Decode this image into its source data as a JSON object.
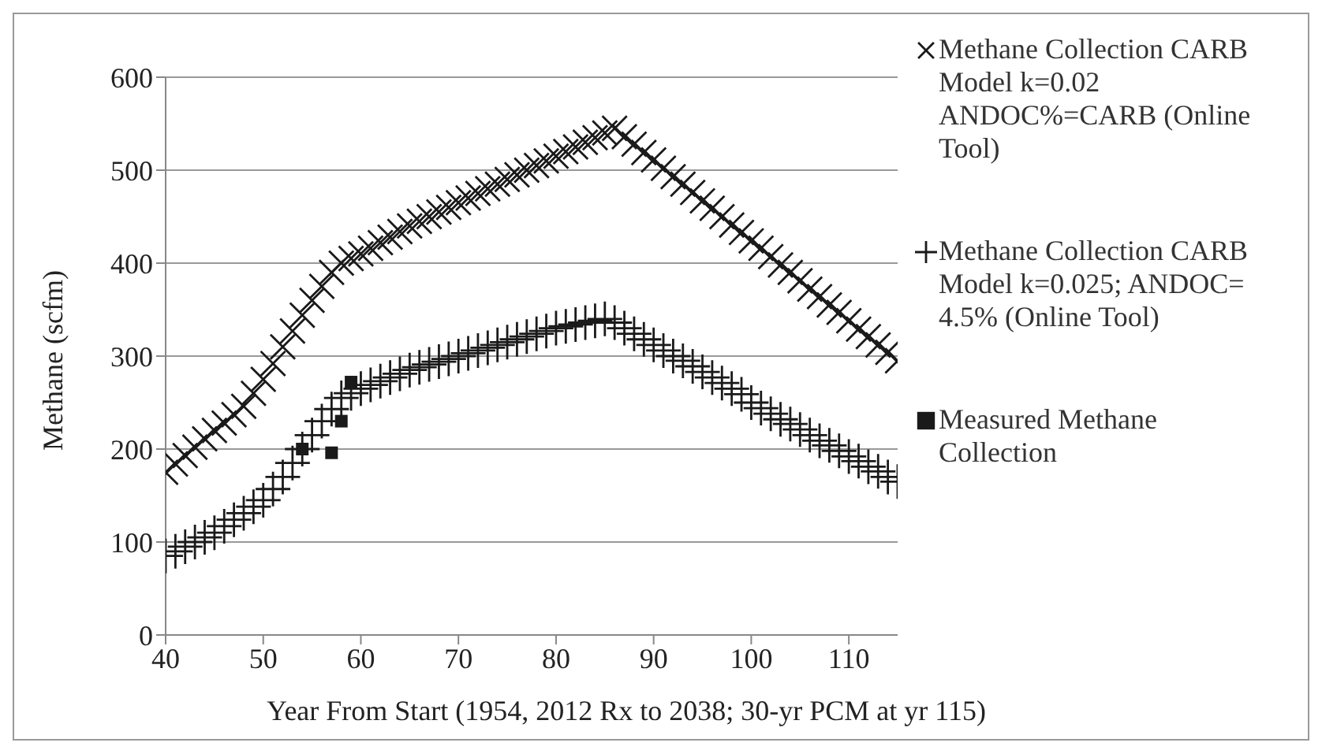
{
  "chart_data": {
    "type": "scatter",
    "xlabel": "Year From Start (1954, 2012 Rx to 2038; 30-yr PCM at yr 115)",
    "ylabel": "Methane (scfm)",
    "xlim": [
      40,
      115
    ],
    "xticks": [
      40,
      50,
      60,
      70,
      80,
      90,
      100,
      110
    ],
    "ylim": [
      0,
      600
    ],
    "yticks": [
      0,
      100,
      200,
      300,
      400,
      500,
      600
    ],
    "grid": "y",
    "legend": "right",
    "series": [
      {
        "name": "Methane Collection CARB Model k=0.02 ANDOC%=CARB (Online Tool)",
        "color": "#1a1a1a",
        "marker": "cross",
        "x": [
          40,
          41,
          42,
          43,
          44,
          45,
          46,
          47,
          48,
          49,
          50,
          51,
          52,
          53,
          54,
          55,
          56,
          57,
          58,
          59,
          60,
          61,
          62,
          63,
          64,
          65,
          66,
          67,
          68,
          69,
          70,
          71,
          72,
          73,
          74,
          75,
          76,
          77,
          78,
          79,
          80,
          81,
          82,
          83,
          84,
          85,
          86,
          87,
          88,
          89,
          90,
          91,
          92,
          93,
          94,
          95,
          96,
          97,
          98,
          99,
          100,
          101,
          102,
          103,
          104,
          105,
          106,
          107,
          108,
          109,
          110,
          111,
          112,
          113,
          114,
          115
        ],
        "values": [
          175,
          184,
          193,
          202,
          211,
          220,
          228,
          237,
          246,
          260,
          275,
          292,
          310,
          327,
          344,
          360,
          375,
          390,
          400,
          405,
          410,
          416,
          422,
          428,
          434,
          440,
          445,
          450,
          455,
          460,
          465,
          470,
          475,
          480,
          485,
          490,
          495,
          500,
          505,
          510,
          515,
          520,
          525,
          530,
          535,
          540,
          545,
          536,
          528,
          519,
          511,
          502,
          493,
          485,
          476,
          467,
          459,
          450,
          441,
          433,
          424,
          416,
          407,
          398,
          390,
          381,
          372,
          364,
          355,
          347,
          338,
          329,
          321,
          312,
          304,
          295
        ]
      },
      {
        "name": "Methane Collection CARB Model k=0.025; ANDOC= 4.5% (Online Tool)",
        "color": "#1a1a1a",
        "marker": "cross",
        "x": [
          40,
          41,
          42,
          43,
          44,
          45,
          46,
          47,
          48,
          49,
          50,
          51,
          52,
          53,
          54,
          55,
          56,
          57,
          58,
          59,
          60,
          61,
          62,
          63,
          64,
          65,
          66,
          67,
          68,
          69,
          70,
          71,
          72,
          73,
          74,
          75,
          76,
          77,
          78,
          79,
          80,
          81,
          82,
          83,
          84,
          85,
          86,
          87,
          88,
          89,
          90,
          91,
          92,
          93,
          94,
          95,
          96,
          97,
          98,
          99,
          100,
          101,
          102,
          103,
          104,
          105,
          106,
          107,
          108,
          109,
          110,
          111,
          112,
          113,
          114,
          115
        ],
        "values": [
          85,
          90,
          95,
          100,
          105,
          110,
          117,
          124,
          131,
          138,
          145,
          157,
          170,
          185,
          200,
          215,
          230,
          243,
          255,
          260,
          265,
          269,
          273,
          277,
          281,
          285,
          288,
          291,
          294,
          297,
          300,
          303,
          306,
          309,
          312,
          315,
          318,
          321,
          324,
          327,
          330,
          332,
          334,
          336,
          338,
          340,
          336,
          330,
          324,
          318,
          312,
          306,
          300,
          295,
          289,
          283,
          277,
          271,
          265,
          259,
          250,
          244,
          238,
          232,
          227,
          221,
          215,
          209,
          204,
          198,
          192,
          187,
          181,
          176,
          170,
          165
        ]
      },
      {
        "name": "Measured Methane Collection",
        "color": "#1a1a1a",
        "marker": "square",
        "x": [
          54,
          57,
          58,
          59
        ],
        "values": [
          200,
          196,
          230,
          272
        ]
      }
    ]
  }
}
